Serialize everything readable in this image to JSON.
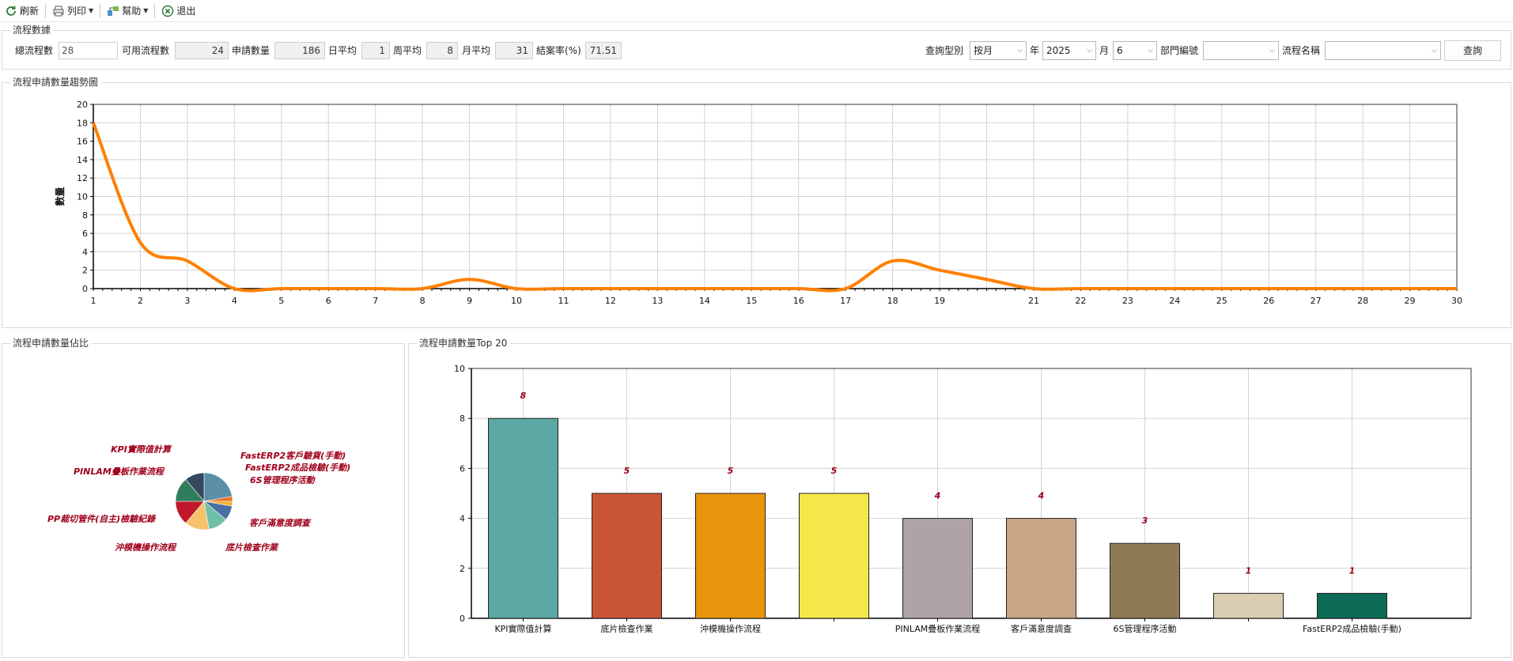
{
  "toolbar": {
    "refresh": "刷新",
    "print": "列印",
    "help": "幫助",
    "exit": "退出"
  },
  "stats": {
    "title": "流程數據",
    "total_label": "總流程數",
    "total_value": "28",
    "available_label": "可用流程數",
    "available_value": "24",
    "applications_label": "申請數量",
    "applications_value": "186",
    "daily_label": "日平均",
    "daily_value": "1",
    "weekly_label": "周平均",
    "weekly_value": "8",
    "monthly_label": "月平均",
    "monthly_value": "31",
    "close_rate_label": "結案率(%)",
    "close_rate_value": "71.51"
  },
  "query": {
    "type_label": "查詢型別",
    "type_value": "按月",
    "year_label": "年",
    "year_value": "2025",
    "month_label": "月",
    "month_value": "6",
    "dept_label": "部門編號",
    "dept_value": "",
    "flow_label": "流程名稱",
    "flow_value": "",
    "submit": "查詢"
  },
  "panels": {
    "trend_title": "流程申請數量趨勢圖",
    "pie_title": "流程申請數量佔比",
    "top_title": "流程申請數量Top 20"
  },
  "colors": {
    "line": "#FF8000",
    "grid": "#d3d3d3",
    "pie_label": "#a0001a",
    "bar_label": "#a0001a"
  },
  "chart_data": [
    {
      "type": "line",
      "title": "",
      "xlabel": "",
      "ylabel": "數量",
      "x": [
        1,
        2,
        3,
        4,
        5,
        6,
        7,
        8,
        9,
        10,
        11,
        12,
        13,
        14,
        15,
        16,
        17,
        18,
        19,
        20,
        21,
        22,
        23,
        24,
        25,
        26,
        27,
        28,
        29,
        30
      ],
      "x_tick_labels": [
        "1",
        "2",
        "3",
        "4",
        "5",
        "6",
        "7",
        "8",
        "9",
        "10",
        "11",
        "12",
        "13",
        "14",
        "15",
        "16",
        "17",
        "18",
        "19",
        "",
        "21",
        "22",
        "23",
        "24",
        "25",
        "26",
        "27",
        "28",
        "29",
        "30"
      ],
      "series": [
        {
          "values": [
            18,
            5,
            3,
            0,
            0,
            0,
            0,
            0,
            1,
            0,
            0,
            0,
            0,
            0,
            0,
            0,
            0,
            3,
            2,
            1,
            0,
            0,
            0,
            0,
            0,
            0,
            0,
            0,
            0,
            0
          ]
        }
      ],
      "xlim": [
        1,
        30
      ],
      "ylim": [
        0,
        20
      ],
      "yticks": [
        0,
        2,
        4,
        6,
        8,
        10,
        12,
        14,
        16,
        18,
        20
      ],
      "grid": true
    },
    {
      "type": "pie",
      "title": "",
      "slices": [
        {
          "label": "KPI實際值計算",
          "value": 8,
          "color": "#5b8fa8"
        },
        {
          "label": "FastERP2客戶驗貨(手動)",
          "value": 1,
          "color": "#e8732a"
        },
        {
          "label": "FastERP2成品檢驗(手動)",
          "value": 1,
          "color": "#f2b134"
        },
        {
          "label": "6S管理程序活動",
          "value": 3,
          "color": "#4a6fa5"
        },
        {
          "label": "客戶滿意度調查",
          "value": 4,
          "color": "#6fbfa8"
        },
        {
          "label": "底片檢查作業",
          "value": 5,
          "color": "#f5c26b"
        },
        {
          "label": "沖模機操作流程",
          "value": 5,
          "color": "#c0182a"
        },
        {
          "label": "PP裁切管件(自主)檢驗紀錄",
          "value": 5,
          "color": "#2e7d5b"
        },
        {
          "label": "PINLAM疊板作業流程",
          "value": 4,
          "color": "#34495e"
        }
      ]
    },
    {
      "type": "bar",
      "title": "",
      "categories": [
        "KPI實際值計算",
        "底片檢查作業",
        "沖模機操作流程",
        "",
        "PINLAM疊板作業流程",
        "客戶滿意度調查",
        "6S管理程序活動",
        "",
        "FastERP2成品檢驗(手動)"
      ],
      "values": [
        8,
        5,
        5,
        5,
        4,
        4,
        3,
        1,
        1
      ],
      "bar_colors": [
        "#5ba8a4",
        "#c85535",
        "#e8950c",
        "#f5e84a",
        "#b0a3a6",
        "#c9a585",
        "#8e7a55",
        "#d9cdb3",
        "#0b6b55"
      ],
      "ylim": [
        0,
        10
      ],
      "yticks": [
        0,
        2,
        4,
        6,
        8,
        10
      ],
      "grid": true
    }
  ]
}
